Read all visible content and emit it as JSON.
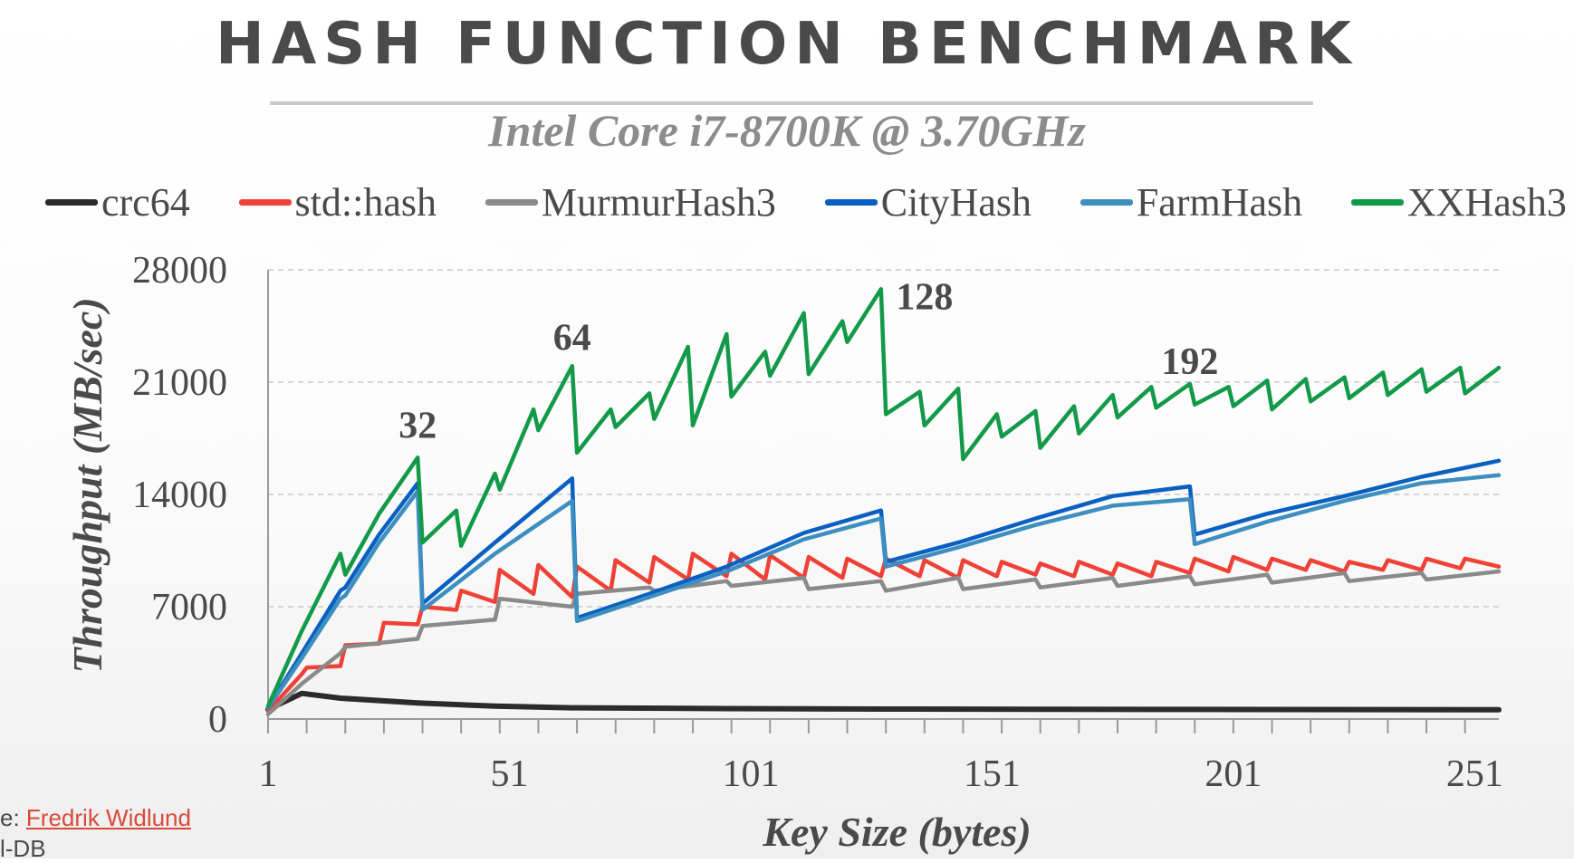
{
  "chart_data": {
    "type": "line",
    "title": "HASH FUNCTION BENCHMARK",
    "subtitle": "Intel Core i7-8700K @ 3.70GHz",
    "xlabel": "Key Size (bytes)",
    "ylabel": "Throughput (MB/sec)",
    "xlim": [
      1,
      256
    ],
    "ylim": [
      0,
      28000
    ],
    "xticks": [
      "1",
      "51",
      "101",
      "151",
      "201",
      "251"
    ],
    "yticks": [
      "0",
      "7000",
      "14000",
      "21000",
      "28000"
    ],
    "grid": true,
    "legend": "top",
    "annotations": [
      {
        "text": "32",
        "x": 32,
        "y": 16500
      },
      {
        "text": "64",
        "x": 64,
        "y": 22000
      },
      {
        "text": "128",
        "x": 128,
        "y": 26800
      },
      {
        "text": "192",
        "x": 192,
        "y": 20500
      }
    ],
    "series": [
      {
        "name": "crc64",
        "color": "#2b2b2b",
        "x": [
          1,
          8,
          16,
          32,
          48,
          64,
          96,
          128,
          192,
          256
        ],
        "y": [
          600,
          1600,
          1300,
          1000,
          800,
          700,
          650,
          620,
          600,
          580
        ]
      },
      {
        "name": "std::hash",
        "color": "#ef4136",
        "x": [
          1,
          8,
          9,
          16,
          17,
          24,
          25,
          32,
          33,
          40,
          41,
          48,
          49,
          56,
          57,
          64,
          65,
          72,
          73,
          80,
          81,
          88,
          89,
          96,
          97,
          104,
          105,
          112,
          113,
          120,
          121,
          128,
          129,
          136,
          137,
          144,
          145,
          152,
          153,
          160,
          161,
          168,
          169,
          176,
          177,
          184,
          185,
          192,
          193,
          200,
          201,
          208,
          209,
          216,
          217,
          224,
          225,
          232,
          233,
          240,
          241,
          248,
          249,
          256
        ],
        "y": [
          500,
          2800,
          3200,
          3300,
          4600,
          4700,
          6000,
          5900,
          7000,
          6800,
          8000,
          7300,
          9300,
          7800,
          9600,
          7600,
          9500,
          8000,
          9900,
          8500,
          10100,
          8700,
          10300,
          8900,
          10300,
          8700,
          10200,
          8800,
          10100,
          8800,
          10000,
          8900,
          10000,
          8900,
          9900,
          8800,
          9900,
          8900,
          9800,
          9000,
          9700,
          8900,
          9800,
          9000,
          9700,
          8900,
          9800,
          9100,
          10000,
          9200,
          10100,
          9300,
          10000,
          9300,
          9900,
          9200,
          9800,
          9300,
          9900,
          9300,
          10000,
          9400,
          10000,
          9500
        ]
      },
      {
        "name": "MurmurHash3",
        "color": "#8a8a8a",
        "x": [
          1,
          8,
          16,
          17,
          32,
          33,
          48,
          49,
          64,
          65,
          80,
          81,
          96,
          97,
          112,
          113,
          128,
          129,
          144,
          145,
          160,
          161,
          176,
          177,
          192,
          193,
          208,
          209,
          224,
          225,
          240,
          241,
          256
        ],
        "y": [
          300,
          2200,
          4100,
          4500,
          5000,
          5800,
          6200,
          7500,
          7000,
          7800,
          8200,
          8000,
          8600,
          8300,
          8800,
          8100,
          8600,
          8000,
          8800,
          8100,
          8700,
          8200,
          8800,
          8300,
          8900,
          8400,
          9000,
          8500,
          9100,
          8600,
          9100,
          8700,
          9200
        ]
      },
      {
        "name": "CityHash",
        "color": "#0a60c2",
        "x": [
          1,
          8,
          16,
          17,
          24,
          32,
          33,
          48,
          64,
          65,
          80,
          96,
          112,
          128,
          129,
          144,
          160,
          176,
          192,
          193,
          208,
          224,
          240,
          256
        ],
        "y": [
          700,
          4100,
          8000,
          8200,
          11500,
          14700,
          7200,
          11000,
          15000,
          6300,
          7800,
          9500,
          11600,
          13000,
          9800,
          11000,
          12500,
          13900,
          14500,
          11500,
          12800,
          13900,
          15100,
          16100
        ]
      },
      {
        "name": "FarmHash",
        "color": "#3d8fc0",
        "x": [
          1,
          8,
          16,
          17,
          24,
          32,
          33,
          48,
          64,
          65,
          80,
          96,
          112,
          128,
          129,
          144,
          160,
          176,
          192,
          193,
          208,
          224,
          240,
          256
        ],
        "y": [
          700,
          3800,
          7500,
          7700,
          11000,
          14200,
          6800,
          10300,
          13600,
          6100,
          7600,
          9200,
          11200,
          12500,
          9500,
          10700,
          12100,
          13300,
          13700,
          10900,
          12300,
          13600,
          14700,
          15200
        ]
      },
      {
        "name": "XXHash3",
        "color": "#139a48",
        "x": [
          1,
          8,
          16,
          17,
          24,
          32,
          33,
          40,
          41,
          48,
          49,
          56,
          57,
          64,
          65,
          72,
          73,
          80,
          81,
          88,
          89,
          96,
          97,
          104,
          105,
          112,
          113,
          120,
          121,
          128,
          129,
          136,
          137,
          144,
          145,
          152,
          153,
          160,
          161,
          168,
          169,
          176,
          177,
          184,
          185,
          192,
          193,
          200,
          201,
          208,
          209,
          216,
          217,
          224,
          225,
          232,
          233,
          240,
          241,
          248,
          249,
          256
        ],
        "y": [
          800,
          5500,
          10300,
          9000,
          12800,
          16300,
          11000,
          13000,
          10800,
          15300,
          14300,
          19300,
          18000,
          22000,
          16600,
          19300,
          18200,
          20300,
          18700,
          23200,
          18300,
          24000,
          20100,
          22900,
          21400,
          25300,
          21500,
          24800,
          23500,
          26800,
          19000,
          20400,
          18300,
          20600,
          16200,
          19000,
          17600,
          19200,
          16900,
          19500,
          17800,
          20200,
          18800,
          20700,
          19400,
          20900,
          19600,
          20700,
          19500,
          21100,
          19300,
          21200,
          19800,
          21300,
          20000,
          21600,
          20200,
          21800,
          20400,
          21900,
          20300,
          21900
        ]
      }
    ]
  },
  "credit": {
    "prefix": "e: ",
    "author": "Fredrik Widlund",
    "line2": "l-DB"
  }
}
